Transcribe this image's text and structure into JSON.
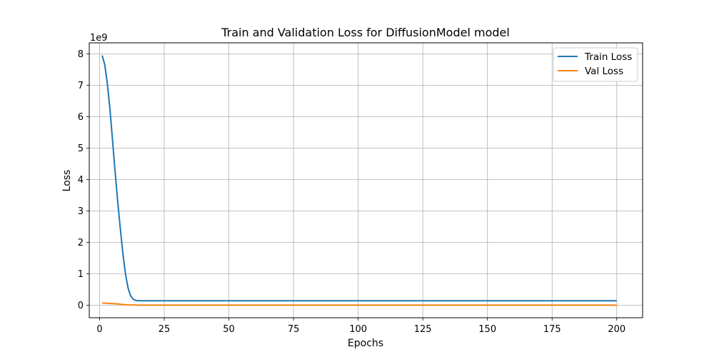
{
  "chart_data": {
    "type": "line",
    "title": "Train and Validation Loss for DiffusionModel model",
    "xlabel": "Epochs",
    "ylabel": "Loss",
    "y_scale_label": "1e9",
    "xlim": [
      -4,
      210
    ],
    "ylim": [
      -0.4,
      8.35
    ],
    "xticks": [
      0,
      25,
      50,
      75,
      100,
      125,
      150,
      175,
      200
    ],
    "yticks": [
      0,
      1,
      2,
      3,
      4,
      5,
      6,
      7,
      8
    ],
    "grid": true,
    "legend_position": "top-right",
    "series": [
      {
        "name": "Train Loss",
        "color": "#1f77b4",
        "x": [
          1,
          2,
          3,
          4,
          5,
          6,
          7,
          8,
          9,
          10,
          11,
          12,
          13,
          14,
          15,
          20,
          30,
          40,
          50,
          60,
          70,
          80,
          90,
          100,
          110,
          120,
          130,
          140,
          150,
          160,
          170,
          180,
          190,
          200
        ],
        "y": [
          7.95,
          7.65,
          7.05,
          6.25,
          5.25,
          4.25,
          3.3,
          2.45,
          1.65,
          1.0,
          0.55,
          0.3,
          0.19,
          0.15,
          0.14,
          0.14,
          0.14,
          0.14,
          0.14,
          0.14,
          0.14,
          0.14,
          0.14,
          0.14,
          0.14,
          0.14,
          0.14,
          0.14,
          0.14,
          0.14,
          0.14,
          0.14,
          0.14,
          0.14
        ]
      },
      {
        "name": "Val Loss",
        "color": "#ff7f0e",
        "x": [
          1,
          3,
          5,
          7,
          9,
          11,
          13,
          15,
          20,
          50,
          100,
          150,
          200
        ],
        "y": [
          0.07,
          0.06,
          0.05,
          0.04,
          0.02,
          0.01,
          0.005,
          0.0,
          0.0,
          0.0,
          0.0,
          0.0,
          0.0
        ]
      }
    ]
  }
}
